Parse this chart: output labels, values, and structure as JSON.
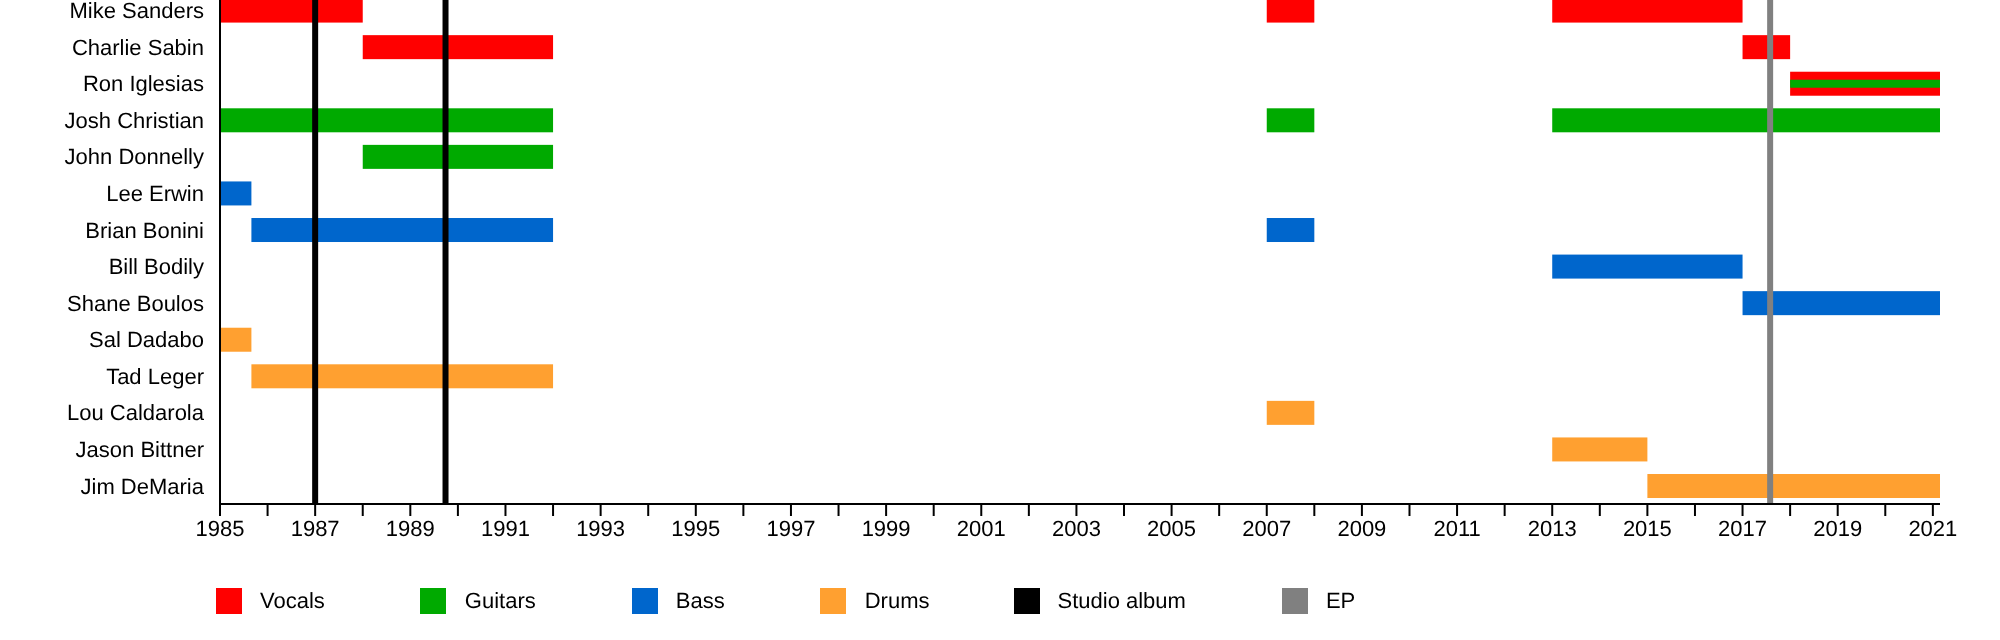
{
  "chart_data": {
    "type": "bar",
    "orientation": "horizontal",
    "categories": [
      "Mike Sanders",
      "Charlie Sabin",
      "Ron Iglesias",
      "Josh Christian",
      "John Donnelly",
      "Lee Erwin",
      "Brian Bonini",
      "Bill Bodily",
      "Shane Boulos",
      "Sal Dadabo",
      "Tad Leger",
      "Lou Caldarola",
      "Jason Bittner",
      "Jim DeMaria"
    ],
    "series": [
      {
        "name": "Vocals",
        "color": "#ff0000",
        "base": [
          1985,
          1988,
          2018,
          null,
          null,
          null,
          null,
          null,
          null,
          null,
          null,
          null,
          null,
          null
        ],
        "values": [
          3,
          4,
          3.15,
          null,
          null,
          null,
          null,
          null,
          null,
          null,
          null,
          null,
          null,
          null
        ]
      },
      {
        "color": "#ff0000",
        "base": [
          2007,
          2017,
          null,
          null,
          null,
          null,
          null,
          null,
          null,
          null,
          null,
          null,
          null,
          null
        ],
        "values": [
          1,
          1,
          null,
          null,
          null,
          null,
          null,
          null,
          null,
          null,
          null,
          null,
          null,
          null
        ]
      },
      {
        "color": "#ff0000",
        "base": [
          2013,
          null,
          null,
          null,
          null,
          null,
          null,
          null,
          null,
          null,
          null,
          null,
          null,
          null
        ],
        "values": [
          4,
          null,
          null,
          null,
          null,
          null,
          null,
          null,
          null,
          null,
          null,
          null,
          null,
          null
        ]
      },
      {
        "name": "Guitars",
        "color": "#00aa00",
        "base": [
          null,
          null,
          2018,
          1985,
          1988,
          null,
          null,
          null,
          null,
          null,
          null,
          null,
          null,
          null
        ],
        "values": [
          null,
          null,
          3.15,
          7,
          4,
          null,
          null,
          null,
          null,
          null,
          null,
          null,
          null,
          null
        ]
      },
      {
        "color": "#00aa00",
        "base": [
          null,
          null,
          null,
          2007,
          null,
          null,
          null,
          null,
          null,
          null,
          null,
          null,
          null,
          null
        ],
        "values": [
          null,
          null,
          null,
          1,
          null,
          null,
          null,
          null,
          null,
          null,
          null,
          null,
          null,
          null
        ]
      },
      {
        "color": "#00aa00",
        "base": [
          null,
          null,
          null,
          2013,
          null,
          null,
          null,
          null,
          null,
          null,
          null,
          null,
          null,
          null
        ],
        "values": [
          null,
          null,
          null,
          8.15,
          null,
          null,
          null,
          null,
          null,
          null,
          null,
          null,
          null,
          null
        ]
      },
      {
        "name": "Bass",
        "color": "#0066cc",
        "base": [
          null,
          null,
          null,
          null,
          null,
          1985,
          1985.66,
          2013,
          2017,
          null,
          null,
          null,
          null,
          null
        ],
        "values": [
          null,
          null,
          null,
          null,
          null,
          0.66,
          6.34,
          4,
          4.15,
          null,
          null,
          null,
          null,
          null
        ]
      },
      {
        "color": "#0066cc",
        "base": [
          null,
          null,
          null,
          null,
          null,
          null,
          2007,
          null,
          null,
          null,
          null,
          null,
          null,
          null
        ],
        "values": [
          null,
          null,
          null,
          null,
          null,
          null,
          1,
          null,
          null,
          null,
          null,
          null,
          null,
          null
        ]
      },
      {
        "name": "Drums",
        "color": "#ffa030",
        "base": [
          null,
          null,
          null,
          null,
          null,
          null,
          null,
          null,
          null,
          1985,
          1985.66,
          2007,
          2013,
          2015
        ],
        "values": [
          null,
          null,
          null,
          null,
          null,
          null,
          null,
          null,
          null,
          0.66,
          6.34,
          1,
          2,
          6.15
        ]
      }
    ],
    "ref_lines": [
      {
        "axis": "x",
        "value": 1987,
        "label": "Studio album",
        "color": "#000000"
      },
      {
        "axis": "x",
        "value": 1989.74,
        "color": "#000000"
      },
      {
        "axis": "x",
        "value": 2017.58,
        "label": "EP",
        "color": "#808080"
      }
    ],
    "xlim": [
      1985,
      2021.15
    ],
    "xticks": [
      1985,
      {
        "value": 1986,
        "label": null
      },
      1987,
      {
        "value": 1988,
        "label": null
      },
      1989,
      {
        "value": 1990,
        "label": null
      },
      1991,
      {
        "value": 1992,
        "label": null
      },
      1993,
      {
        "value": 1994,
        "label": null
      },
      1995,
      {
        "value": 1996,
        "label": null
      },
      1997,
      {
        "value": 1998,
        "label": null
      },
      1999,
      {
        "value": 2000,
        "label": null
      },
      2001,
      {
        "value": 2002,
        "label": null
      },
      2003,
      {
        "value": 2004,
        "label": null
      },
      2005,
      {
        "value": 2006,
        "label": null
      },
      2007,
      {
        "value": 2008,
        "label": null
      },
      2009,
      {
        "value": 2010,
        "label": null
      },
      2011,
      {
        "value": 2012,
        "label": null
      },
      2013,
      {
        "value": 2014,
        "label": null
      },
      2015,
      {
        "value": 2016,
        "label": null
      },
      2017,
      {
        "value": 2018,
        "label": null
      },
      2019,
      {
        "value": 2020,
        "label": null
      },
      2021
    ],
    "legend": "bottom"
  }
}
